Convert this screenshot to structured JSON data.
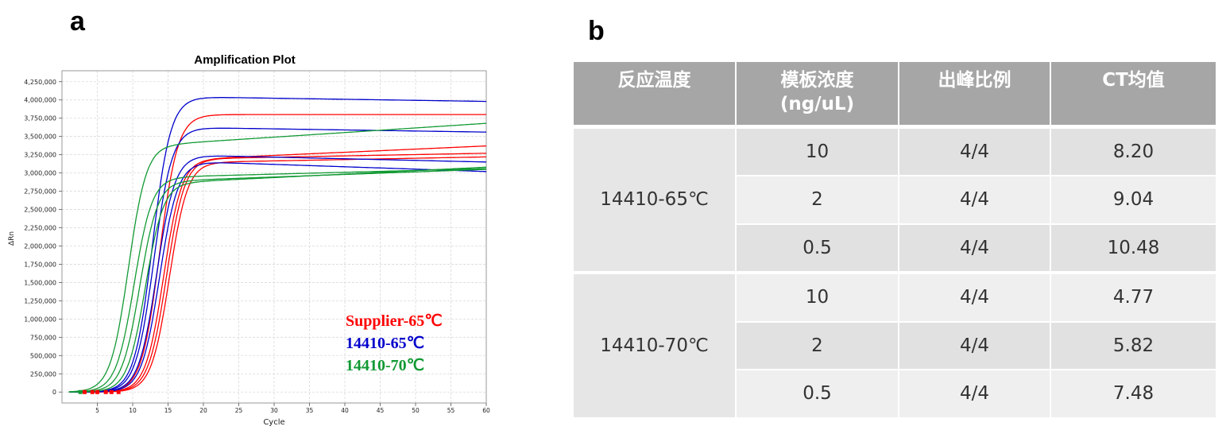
{
  "panel_a_label": "a",
  "panel_b_label": "b",
  "chart_data": {
    "type": "line",
    "title": "Amplification Plot",
    "xlabel": "Cycle",
    "ylabel": "ΔRn",
    "xlim": [
      0,
      60
    ],
    "ylim": [
      -150000,
      4400000
    ],
    "xticks": [
      5,
      10,
      15,
      20,
      25,
      30,
      35,
      40,
      45,
      50,
      55,
      60
    ],
    "yticks": [
      0,
      250000,
      500000,
      750000,
      1000000,
      1250000,
      1500000,
      1750000,
      2000000,
      2250000,
      2500000,
      2750000,
      3000000,
      3250000,
      3500000,
      3750000,
      4000000,
      4250000
    ],
    "ytick_labels": [
      "0",
      "250,000",
      "500,000",
      "750,000",
      "1,000,000",
      "1,250,000",
      "1,500,000",
      "1,750,000",
      "2,000,000",
      "2,250,000",
      "2,500,000",
      "2,750,000",
      "3,000,000",
      "3,250,000",
      "3,500,000",
      "3,750,000",
      "4,000,000",
      "4,250,000"
    ],
    "grid": true,
    "legend": [
      {
        "label": "Supplier-65℃",
        "color": "#ff0000"
      },
      {
        "label": "14410-65℃",
        "color": "#0000cc"
      },
      {
        "label": "14410-70℃",
        "color": "#119933"
      }
    ],
    "series": [
      {
        "group": "Supplier-65℃",
        "color": "#ff0000",
        "ct": 12.0,
        "plateau": 3800000,
        "end": 3800000,
        "width": 1.3
      },
      {
        "group": "Supplier-65℃",
        "color": "#ff0000",
        "ct": 12.6,
        "plateau": 3200000,
        "end": 3370000,
        "width": 1.3
      },
      {
        "group": "Supplier-65℃",
        "color": "#ff0000",
        "ct": 13.0,
        "plateau": 3200000,
        "end": 3270000,
        "width": 1.3
      },
      {
        "group": "Supplier-65℃",
        "color": "#ff0000",
        "ct": 13.4,
        "plateau": 3150000,
        "end": 3220000,
        "width": 1.3
      },
      {
        "group": "14410-65℃",
        "color": "#0000cc",
        "ct": 11.0,
        "plateau": 4040000,
        "end": 3980000,
        "width": 1.3
      },
      {
        "group": "14410-65℃",
        "color": "#0000cc",
        "ct": 11.2,
        "plateau": 3620000,
        "end": 3560000,
        "width": 1.3
      },
      {
        "group": "14410-65℃",
        "color": "#0000cc",
        "ct": 11.6,
        "plateau": 3240000,
        "end": 3150000,
        "width": 1.3
      },
      {
        "group": "14410-65℃",
        "color": "#0000cc",
        "ct": 12.0,
        "plateau": 3150000,
        "end": 3020000,
        "width": 1.3
      },
      {
        "group": "14410-70℃",
        "color": "#119933",
        "ct": 7.6,
        "plateau": 3400000,
        "end": 3680000,
        "width": 1.3
      },
      {
        "group": "14410-70℃",
        "color": "#119933",
        "ct": 8.4,
        "plateau": 2950000,
        "end": 3060000,
        "width": 1.3
      },
      {
        "group": "14410-70℃",
        "color": "#119933",
        "ct": 9.2,
        "plateau": 2900000,
        "end": 3050000,
        "width": 1.3
      },
      {
        "group": "14410-70℃",
        "color": "#119933",
        "ct": 10.0,
        "plateau": 2880000,
        "end": 3080000,
        "width": 1.3
      }
    ]
  },
  "table": {
    "headers": [
      "反应温度",
      "模板浓度\n(ng/uL)",
      "出峰比例",
      "CT均值"
    ],
    "groups": [
      {
        "label": "14410-65℃",
        "rows": [
          {
            "conc": "10",
            "ratio": "4/4",
            "ct": "8.20"
          },
          {
            "conc": "2",
            "ratio": "4/4",
            "ct": "9.04"
          },
          {
            "conc": "0.5",
            "ratio": "4/4",
            "ct": "10.48"
          }
        ]
      },
      {
        "label": "14410-70℃",
        "rows": [
          {
            "conc": "10",
            "ratio": "4/4",
            "ct": "4.77"
          },
          {
            "conc": "2",
            "ratio": "4/4",
            "ct": "5.82"
          },
          {
            "conc": "0.5",
            "ratio": "4/4",
            "ct": "7.48"
          }
        ]
      }
    ]
  }
}
